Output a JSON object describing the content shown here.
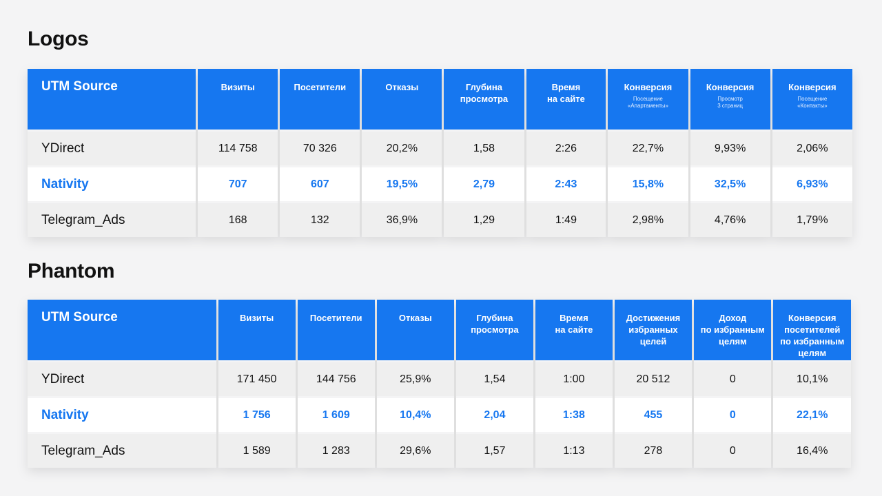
{
  "logos": {
    "title": "Logos",
    "headers": [
      {
        "label": "UTM Source",
        "sub": ""
      },
      {
        "label": "Визиты",
        "sub": ""
      },
      {
        "label": "Посетители",
        "sub": ""
      },
      {
        "label": "Отказы",
        "sub": ""
      },
      {
        "label": "Глубина\nпросмотра",
        "sub": ""
      },
      {
        "label": "Время\nна сайте",
        "sub": ""
      },
      {
        "label": "Конверсия",
        "sub": "Посещение\n«Апартаменты»"
      },
      {
        "label": "Конверсия",
        "sub": "Просмотр\n3 страниц"
      },
      {
        "label": "Конверсия",
        "sub": "Посещение\n«Контакты»"
      }
    ],
    "rows": [
      [
        "YDirect",
        "114 758",
        "70 326",
        "20,2%",
        "1,58",
        "2:26",
        "22,7%",
        "9,93%",
        "2,06%"
      ],
      [
        "Nativity",
        "707",
        "607",
        "19,5%",
        "2,79",
        "2:43",
        "15,8%",
        "32,5%",
        "6,93%"
      ],
      [
        "Telegram_Ads",
        "168",
        "132",
        "36,9%",
        "1,29",
        "1:49",
        "2,98%",
        "4,76%",
        "1,79%"
      ]
    ]
  },
  "phantom": {
    "title": "Phantom",
    "headers": [
      {
        "label": "UTM Source",
        "sub": ""
      },
      {
        "label": "Визиты",
        "sub": ""
      },
      {
        "label": "Посетители",
        "sub": ""
      },
      {
        "label": "Отказы",
        "sub": ""
      },
      {
        "label": "Глубина\nпросмотра",
        "sub": ""
      },
      {
        "label": "Время\nна сайте",
        "sub": ""
      },
      {
        "label": "Достижения\nизбранных\nцелей",
        "sub": ""
      },
      {
        "label": "Доход\nпо избранным\nцелям",
        "sub": ""
      },
      {
        "label": "Конверсия\nпосетителей\nпо избранным\nцелям",
        "sub": ""
      }
    ],
    "rows": [
      [
        "YDirect",
        "171 450",
        "144 756",
        "25,9%",
        "1,54",
        "1:00",
        "20 512",
        "0",
        "10,1%"
      ],
      [
        "Nativity",
        "1 756",
        "1 609",
        "10,4%",
        "2,04",
        "1:38",
        "455",
        "0",
        "22,1%"
      ],
      [
        "Telegram_Ads",
        "1 589",
        "1 283",
        "29,6%",
        "1,57",
        "1:13",
        "278",
        "0",
        "16,4%"
      ]
    ]
  },
  "colors": {
    "accent": "#1677f0",
    "row_gray": "#efefef",
    "row_white": "#ffffff",
    "source_gray": "#8c8c8c"
  }
}
